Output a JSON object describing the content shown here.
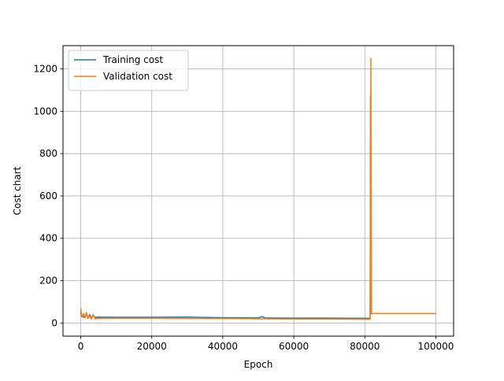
{
  "chart_data": {
    "type": "line",
    "title": "",
    "xlabel": "Epoch",
    "ylabel": "Cost chart",
    "xlim": [
      -5000,
      105000
    ],
    "ylim": [
      -62,
      1310
    ],
    "xticks": [
      0,
      20000,
      40000,
      60000,
      80000,
      100000
    ],
    "yticks": [
      0,
      200,
      400,
      600,
      800,
      1000,
      1200
    ],
    "grid": true,
    "legend_position": "upper-left",
    "series": [
      {
        "name": "Training cost",
        "color": "#1f77b4",
        "x": [
          0,
          200,
          400,
          800,
          1200,
          1600,
          2000,
          2500,
          3000,
          3500,
          4000,
          5000,
          10000,
          20000,
          30000,
          40000,
          50000,
          51000,
          52000,
          60000,
          70000,
          80000,
          81500,
          81600,
          81700,
          82000,
          90000,
          100000
        ],
        "y": [
          55,
          35,
          28,
          30,
          25,
          45,
          22,
          40,
          24,
          38,
          26,
          28,
          27,
          27,
          28,
          25,
          24,
          30,
          24,
          23,
          23,
          22,
          22,
          1070,
          45,
          45,
          45,
          45
        ]
      },
      {
        "name": "Validation cost",
        "color": "#ff7f0e",
        "x": [
          0,
          200,
          400,
          800,
          1200,
          1600,
          2000,
          2500,
          3000,
          3500,
          4000,
          5000,
          10000,
          20000,
          30000,
          40000,
          50000,
          60000,
          70000,
          80000,
          81500,
          81700,
          81900,
          82200,
          90000,
          100000
        ],
        "y": [
          70,
          40,
          30,
          45,
          25,
          50,
          22,
          35,
          18,
          40,
          20,
          22,
          22,
          22,
          21,
          21,
          20,
          19,
          19,
          18,
          18,
          1250,
          45,
          45,
          45,
          45
        ]
      }
    ]
  }
}
